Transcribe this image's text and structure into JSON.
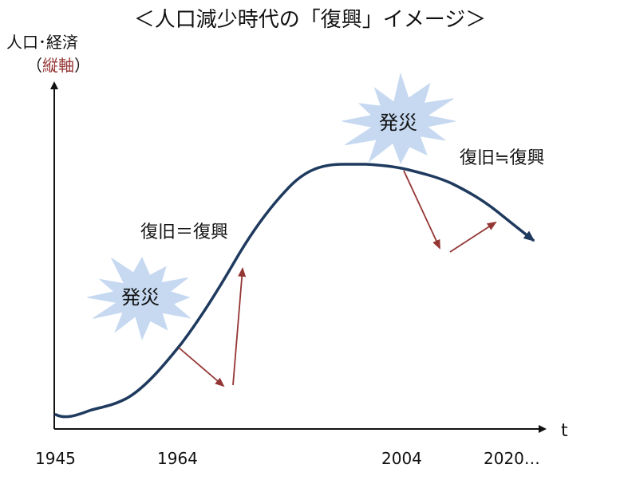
{
  "title": "＜人口減少時代の「復興」イメージ＞",
  "y_axis": {
    "label": "人口･経済",
    "sublabel_open": "（",
    "sublabel": "縦軸",
    "sublabel_close": "）"
  },
  "x_axis": {
    "label": "t",
    "ticks": [
      "1945",
      "1964",
      "2004",
      "2020…"
    ]
  },
  "bursts": [
    {
      "label": "発災"
    },
    {
      "label": "発災"
    }
  ],
  "annotations": {
    "early": "復旧＝復興",
    "late": "復旧≒復興"
  },
  "colors": {
    "curve": "#1f3a5f",
    "arrow": "#943634",
    "burst_fill": "#c6d9f1",
    "axis": "#111111",
    "sublabel_accent": "#943634"
  }
}
